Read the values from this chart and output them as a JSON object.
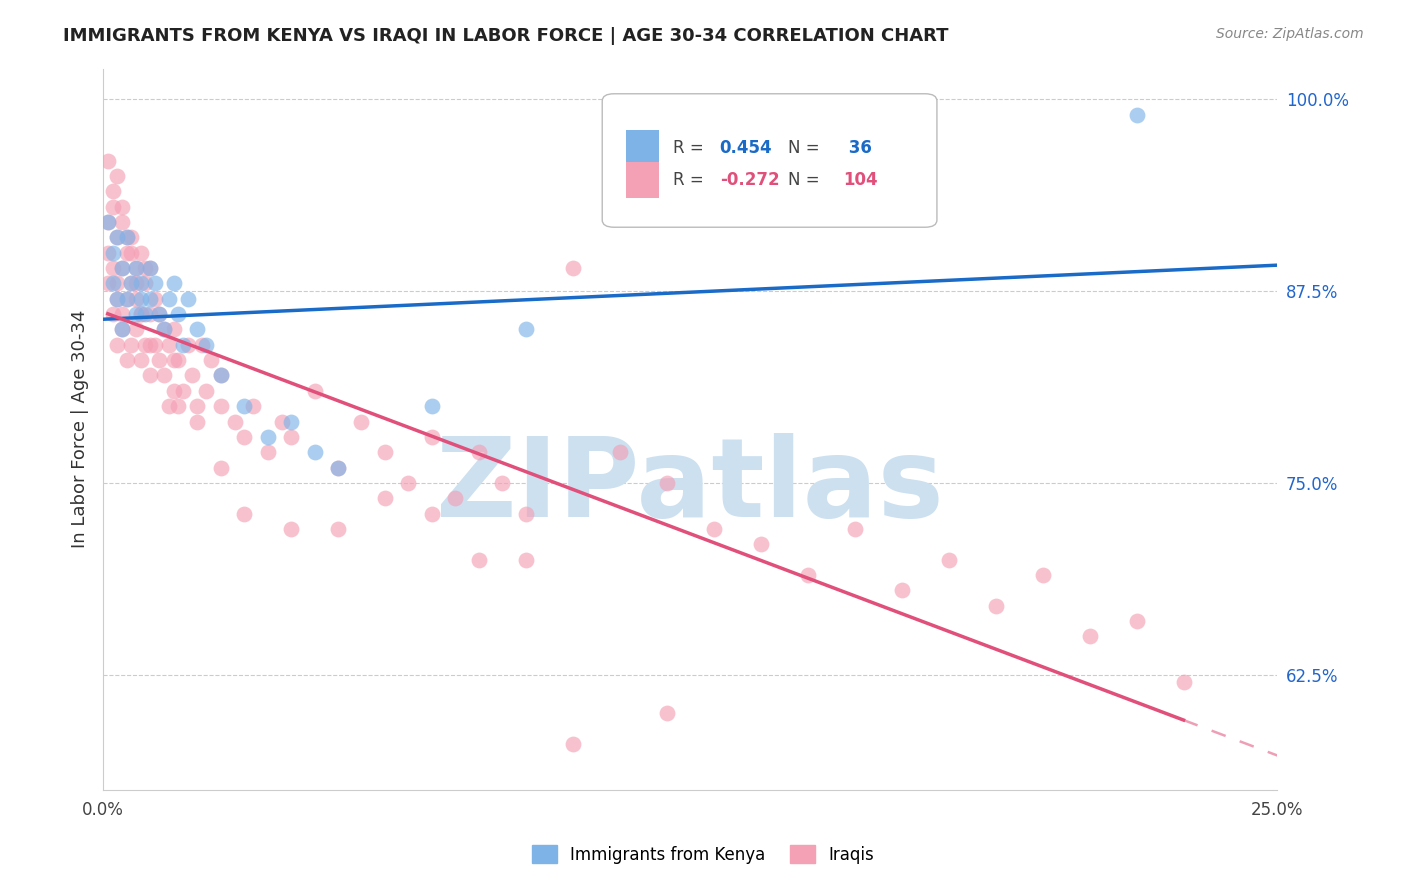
{
  "title": "IMMIGRANTS FROM KENYA VS IRAQI IN LABOR FORCE | AGE 30-34 CORRELATION CHART",
  "source": "Source: ZipAtlas.com",
  "ylabel": "In Labor Force | Age 30-34",
  "xlim": [
    0.0,
    0.25
  ],
  "ylim": [
    0.55,
    1.02
  ],
  "yticks": [
    0.625,
    0.75,
    0.875,
    1.0
  ],
  "ytick_labels": [
    "62.5%",
    "75.0%",
    "87.5%",
    "100.0%"
  ],
  "xticks": [
    0.0,
    0.05,
    0.1,
    0.15,
    0.2,
    0.25
  ],
  "xtick_labels": [
    "0.0%",
    "",
    "",
    "",
    "",
    "25.0%"
  ],
  "kenya_color": "#7eb3e8",
  "iraqi_color": "#f4a0b5",
  "kenya_line_color": "#1a6ac7",
  "iraqi_line_color": "#e0507a",
  "watermark": "ZIPatlas",
  "watermark_color": "#cce0f0",
  "background_color": "#ffffff",
  "kenya_x": [
    0.001,
    0.002,
    0.002,
    0.003,
    0.003,
    0.004,
    0.004,
    0.005,
    0.005,
    0.006,
    0.007,
    0.007,
    0.008,
    0.008,
    0.009,
    0.01,
    0.01,
    0.011,
    0.012,
    0.013,
    0.014,
    0.015,
    0.016,
    0.017,
    0.018,
    0.02,
    0.022,
    0.025,
    0.03,
    0.035,
    0.04,
    0.045,
    0.05,
    0.07,
    0.09,
    0.22
  ],
  "kenya_y": [
    0.92,
    0.88,
    0.9,
    0.87,
    0.91,
    0.85,
    0.89,
    0.87,
    0.91,
    0.88,
    0.86,
    0.89,
    0.87,
    0.88,
    0.86,
    0.87,
    0.89,
    0.88,
    0.86,
    0.85,
    0.87,
    0.88,
    0.86,
    0.84,
    0.87,
    0.85,
    0.84,
    0.82,
    0.8,
    0.78,
    0.79,
    0.77,
    0.76,
    0.8,
    0.85,
    0.99
  ],
  "iraqi_x": [
    0.001,
    0.001,
    0.001,
    0.002,
    0.002,
    0.002,
    0.003,
    0.003,
    0.003,
    0.003,
    0.004,
    0.004,
    0.004,
    0.004,
    0.005,
    0.005,
    0.005,
    0.006,
    0.006,
    0.006,
    0.007,
    0.007,
    0.007,
    0.008,
    0.008,
    0.008,
    0.009,
    0.009,
    0.01,
    0.01,
    0.01,
    0.011,
    0.011,
    0.012,
    0.012,
    0.013,
    0.013,
    0.014,
    0.014,
    0.015,
    0.015,
    0.016,
    0.016,
    0.017,
    0.018,
    0.019,
    0.02,
    0.021,
    0.022,
    0.023,
    0.025,
    0.025,
    0.028,
    0.03,
    0.032,
    0.035,
    0.038,
    0.04,
    0.045,
    0.05,
    0.055,
    0.06,
    0.065,
    0.07,
    0.075,
    0.08,
    0.085,
    0.09,
    0.1,
    0.11,
    0.12,
    0.13,
    0.14,
    0.15,
    0.16,
    0.17,
    0.18,
    0.19,
    0.2,
    0.21,
    0.22,
    0.23,
    0.001,
    0.002,
    0.003,
    0.004,
    0.005,
    0.006,
    0.007,
    0.008,
    0.009,
    0.01,
    0.015,
    0.02,
    0.025,
    0.03,
    0.04,
    0.05,
    0.06,
    0.07,
    0.08,
    0.09,
    0.1,
    0.12
  ],
  "iraqi_y": [
    0.88,
    0.92,
    0.9,
    0.86,
    0.89,
    0.93,
    0.84,
    0.88,
    0.91,
    0.87,
    0.85,
    0.89,
    0.92,
    0.86,
    0.83,
    0.87,
    0.9,
    0.84,
    0.88,
    0.91,
    0.85,
    0.89,
    0.87,
    0.83,
    0.86,
    0.9,
    0.84,
    0.88,
    0.82,
    0.86,
    0.89,
    0.84,
    0.87,
    0.83,
    0.86,
    0.82,
    0.85,
    0.8,
    0.84,
    0.81,
    0.85,
    0.8,
    0.83,
    0.81,
    0.84,
    0.82,
    0.8,
    0.84,
    0.81,
    0.83,
    0.8,
    0.82,
    0.79,
    0.78,
    0.8,
    0.77,
    0.79,
    0.78,
    0.81,
    0.76,
    0.79,
    0.77,
    0.75,
    0.78,
    0.74,
    0.77,
    0.75,
    0.73,
    0.89,
    0.77,
    0.75,
    0.72,
    0.71,
    0.69,
    0.72,
    0.68,
    0.7,
    0.67,
    0.69,
    0.65,
    0.66,
    0.62,
    0.96,
    0.94,
    0.95,
    0.93,
    0.91,
    0.9,
    0.88,
    0.86,
    0.89,
    0.84,
    0.83,
    0.79,
    0.76,
    0.73,
    0.72,
    0.72,
    0.74,
    0.73,
    0.7,
    0.7,
    0.58,
    0.6
  ]
}
